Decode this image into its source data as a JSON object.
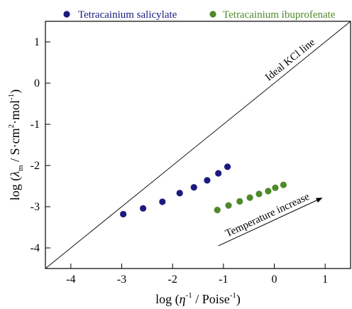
{
  "chart_data": {
    "type": "scatter",
    "xlim": [
      -4.5,
      1.5
    ],
    "ylim": [
      -4.5,
      1.5
    ],
    "x_ticks": [
      -4,
      -3,
      -2,
      -1,
      0,
      1
    ],
    "y_ticks": [
      1,
      0,
      -1,
      -2,
      -3,
      -4
    ],
    "x_tick_labels": [
      "-4",
      "-3",
      "-2",
      "-1",
      "0",
      "1"
    ],
    "y_tick_labels": [
      "1",
      "0",
      "-1",
      "-2",
      "-3",
      "-4"
    ],
    "xlabel": {
      "prefix": "log (",
      "eta": "η",
      "eta_sup": "-1",
      "mid": " / Poise",
      "poise_sup": "-1",
      "suffix": ")"
    },
    "ylabel": {
      "prefix": "log (",
      "lambda": "λ",
      "lambda_sub": "m",
      "mid": " / S·cm",
      "cm_sup": "2",
      "mol": "·mol",
      "mol_sup": "-1",
      "suffix": ")"
    },
    "legend_position": "top",
    "grid": false,
    "series": [
      {
        "name": "Tetracainium salicylate",
        "color": "#1a1a80",
        "x": [
          -2.97,
          -2.58,
          -2.2,
          -1.86,
          -1.58,
          -1.32,
          -1.1,
          -0.92
        ],
        "y": [
          -3.18,
          -3.04,
          -2.88,
          -2.67,
          -2.53,
          -2.36,
          -2.19,
          -2.03
        ]
      },
      {
        "name": "Tetracainium ibuprofenate",
        "color": "#4e8a2a",
        "x": [
          -1.12,
          -0.9,
          -0.68,
          -0.48,
          -0.3,
          -0.12,
          0.02,
          0.18
        ],
        "y": [
          -3.08,
          -2.97,
          -2.87,
          -2.78,
          -2.69,
          -2.62,
          -2.54,
          -2.47
        ]
      }
    ],
    "reference_line": {
      "label": "Ideal KCl line",
      "x": [
        -4.5,
        1.5
      ],
      "y": [
        -4.5,
        1.5
      ]
    },
    "annotation": {
      "label": "Temperature increase",
      "x_from": -1.1,
      "y_from": -3.95,
      "x_to": 0.95,
      "y_to": -2.78
    }
  }
}
